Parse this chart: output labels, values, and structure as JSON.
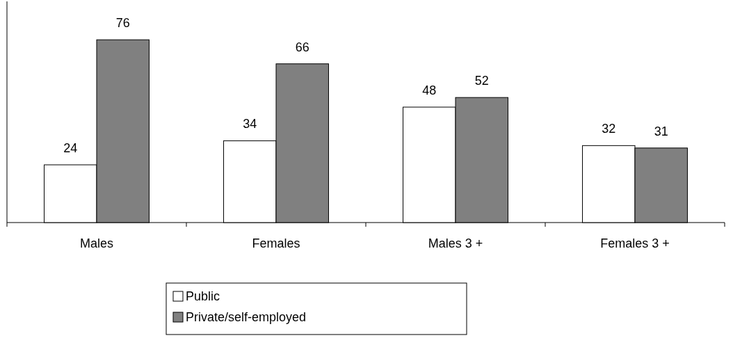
{
  "chart_data": {
    "type": "bar",
    "categories": [
      "Males",
      "Females",
      "Males 3 +",
      "Females 3 +"
    ],
    "series": [
      {
        "name": "Public",
        "color": "#ffffff",
        "values": [
          24,
          34,
          48,
          32
        ]
      },
      {
        "name": "Private/self-employed",
        "color": "#808080",
        "values": [
          76,
          66,
          52,
          31
        ]
      }
    ],
    "data_labels": true,
    "legend": "bottom",
    "tick_labels": "x",
    "grid": false
  }
}
